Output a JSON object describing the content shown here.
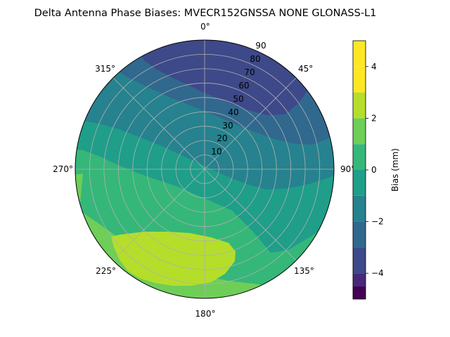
{
  "chart_data": {
    "type": "heatmap",
    "projection": "polar",
    "title": "Delta Antenna Phase Biases: MVECR152GNSSA   NONE GLONASS-L1",
    "theta_direction": "clockwise",
    "theta_zero": "N",
    "theta_tick_labels": [
      "0°",
      "45°",
      "90°",
      "135°",
      "180°",
      "225°",
      "270°",
      "315°"
    ],
    "radial_tick_labels": [
      "10",
      "20",
      "30",
      "40",
      "50",
      "60",
      "70",
      "80",
      "90"
    ],
    "radial_range": [
      0,
      90
    ],
    "grid": true,
    "colorbar": {
      "label": "Bias (mm)",
      "range": [
        -5,
        5
      ],
      "ticks": [
        -4,
        -2,
        0,
        2,
        4
      ],
      "tick_labels": [
        "−4",
        "−2",
        "0",
        "2",
        "4"
      ],
      "levels": [
        -5,
        -4.5,
        -4,
        -3,
        -2,
        -1,
        0,
        1,
        2,
        3,
        4,
        5
      ],
      "colors": [
        "#440154",
        "#482878",
        "#3e4989",
        "#31688e",
        "#26828e",
        "#1f9e89",
        "#35b779",
        "#6ece58",
        "#b5de2b",
        "#fde725",
        "#fde725"
      ]
    },
    "bands": [
      {
        "range": [
          -4.5,
          -4.0
        ],
        "color": "#482878",
        "description_level": "-4.25"
      },
      {
        "range": [
          -4.0,
          -3.0
        ],
        "color": "#3e4989",
        "description_level": "-3.5"
      },
      {
        "range": [
          -3.0,
          -2.0
        ],
        "color": "#31688e",
        "description_level": "-2.5"
      },
      {
        "range": [
          -2.0,
          -1.0
        ],
        "color": "#26828e",
        "description_level": "-1.5"
      },
      {
        "range": [
          -1.0,
          0.0
        ],
        "color": "#1f9e89",
        "description_level": "-0.5"
      },
      {
        "range": [
          0.0,
          1.0
        ],
        "color": "#35b779",
        "description_level": "0.5"
      },
      {
        "range": [
          1.0,
          2.0
        ],
        "color": "#6ece58",
        "description_level": "1.5"
      },
      {
        "range": [
          2.0,
          3.0
        ],
        "color": "#b5de2b",
        "description_level": "2.5"
      }
    ]
  }
}
